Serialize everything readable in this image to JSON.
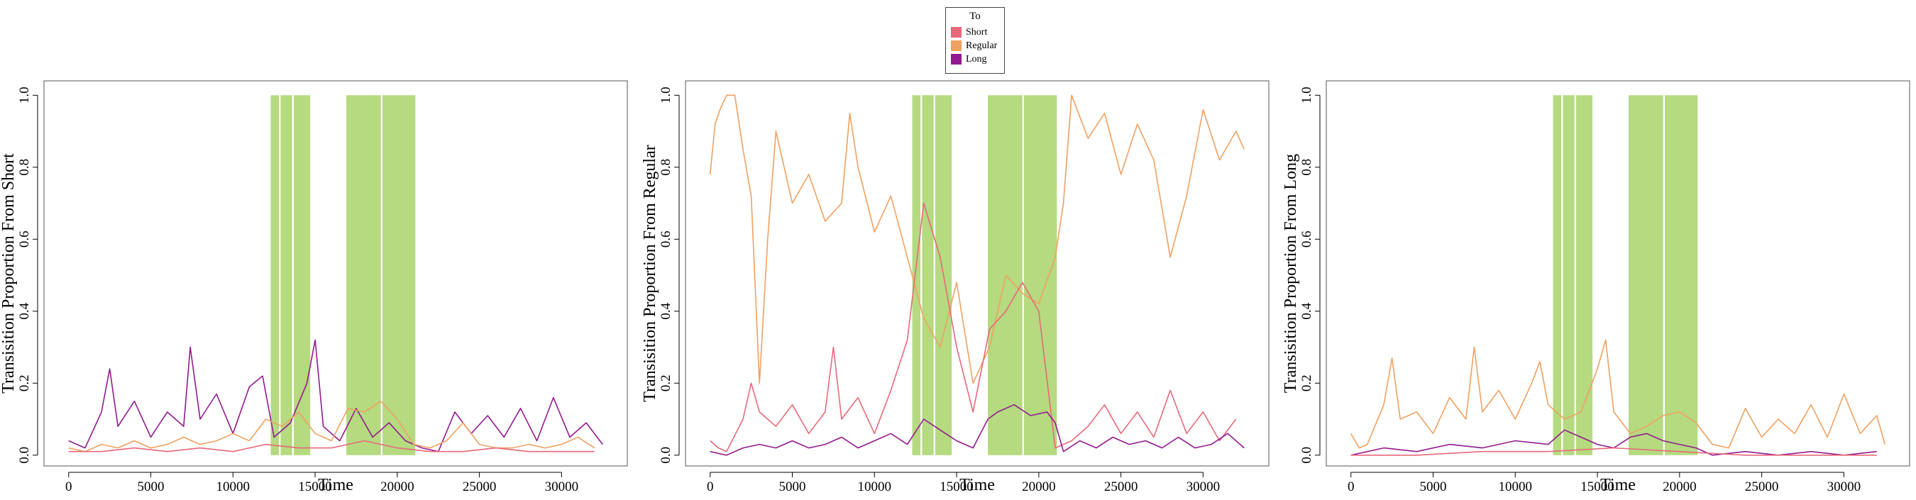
{
  "colors": {
    "Short": "#e8687a",
    "Regular": "#f0a060",
    "Long": "#93198f",
    "shade": "#a8d46a"
  },
  "legend": {
    "title": "To",
    "items": [
      {
        "label": "Short",
        "color": "#e8687a"
      },
      {
        "label": "Regular",
        "color": "#f0a060"
      },
      {
        "label": "Long",
        "color": "#93198f"
      }
    ]
  },
  "chart_data": [
    {
      "type": "line",
      "xlabel": "Time",
      "ylabel": "Transisition Proportion From Short",
      "xlim": [
        -1500,
        34000
      ],
      "ylim": [
        -0.03,
        1.04
      ],
      "xticks": [
        0,
        5000,
        10000,
        15000,
        20000,
        25000,
        30000
      ],
      "yticks": [
        0.0,
        0.2,
        0.4,
        0.6,
        0.8,
        1.0
      ],
      "ytick_labels": [
        "0.0",
        "0.2",
        "0.4",
        "0.6",
        "0.8",
        "1.0"
      ],
      "grid": false,
      "shaded_regions": [
        [
          12300,
          12800
        ],
        [
          12900,
          13600
        ],
        [
          13700,
          14700
        ],
        [
          16900,
          19000
        ],
        [
          19100,
          21100
        ]
      ],
      "series": [
        {
          "name": "Long",
          "x": [
            0,
            1000,
            2000,
            2500,
            3000,
            4000,
            5000,
            6000,
            7000,
            7400,
            8000,
            9000,
            10000,
            11000,
            11800,
            12500,
            13500,
            14500,
            15000,
            15500,
            16500,
            17500,
            18500,
            19500,
            20500,
            21500,
            22500,
            23500,
            24500,
            25500,
            26500,
            27500,
            28500,
            29500,
            30500,
            31500,
            32500
          ],
          "y": [
            0.04,
            0.02,
            0.12,
            0.24,
            0.08,
            0.15,
            0.05,
            0.12,
            0.08,
            0.3,
            0.1,
            0.17,
            0.06,
            0.19,
            0.22,
            0.05,
            0.09,
            0.2,
            0.32,
            0.08,
            0.04,
            0.13,
            0.05,
            0.09,
            0.04,
            0.02,
            0.01,
            0.12,
            0.06,
            0.11,
            0.05,
            0.13,
            0.04,
            0.16,
            0.05,
            0.09,
            0.03
          ]
        },
        {
          "name": "Regular",
          "x": [
            0,
            1000,
            2000,
            3000,
            4000,
            5000,
            6000,
            7000,
            8000,
            9000,
            10000,
            11000,
            12000,
            13000,
            14000,
            15000,
            16000,
            17000,
            18000,
            19000,
            20000,
            21000,
            22000,
            23000,
            24000,
            25000,
            26000,
            27000,
            28000,
            29000,
            30000,
            31000,
            32000
          ],
          "y": [
            0.02,
            0.01,
            0.03,
            0.02,
            0.04,
            0.02,
            0.03,
            0.05,
            0.03,
            0.04,
            0.06,
            0.04,
            0.1,
            0.08,
            0.12,
            0.06,
            0.04,
            0.13,
            0.12,
            0.15,
            0.1,
            0.03,
            0.02,
            0.04,
            0.09,
            0.03,
            0.02,
            0.02,
            0.03,
            0.02,
            0.03,
            0.05,
            0.02
          ]
        },
        {
          "name": "Short",
          "x": [
            0,
            2000,
            4000,
            6000,
            8000,
            10000,
            12000,
            14000,
            16000,
            18000,
            20000,
            22000,
            24000,
            26000,
            28000,
            30000,
            32000
          ],
          "y": [
            0.01,
            0.01,
            0.02,
            0.01,
            0.02,
            0.01,
            0.03,
            0.02,
            0.02,
            0.04,
            0.02,
            0.01,
            0.01,
            0.02,
            0.01,
            0.01,
            0.01
          ]
        }
      ]
    },
    {
      "type": "line",
      "xlabel": "Time",
      "ylabel": "Transisition Proportion From Regular",
      "xlim": [
        -1500,
        34000
      ],
      "ylim": [
        -0.03,
        1.04
      ],
      "xticks": [
        0,
        5000,
        10000,
        15000,
        20000,
        25000,
        30000
      ],
      "yticks": [
        0.0,
        0.2,
        0.4,
        0.6,
        0.8,
        1.0
      ],
      "ytick_labels": [
        "0.0",
        "0.2",
        "0.4",
        "0.6",
        "0.8",
        "1.0"
      ],
      "grid": false,
      "shaded_regions": [
        [
          12300,
          12800
        ],
        [
          12900,
          13600
        ],
        [
          13700,
          14700
        ],
        [
          16900,
          19000
        ],
        [
          19100,
          21100
        ]
      ],
      "series": [
        {
          "name": "Regular",
          "x": [
            0,
            300,
            600,
            1000,
            1500,
            2000,
            2500,
            3000,
            3500,
            4000,
            5000,
            6000,
            7000,
            8000,
            8500,
            9000,
            10000,
            11000,
            12000,
            13000,
            14000,
            15000,
            16000,
            17000,
            18000,
            19000,
            20000,
            21000,
            21500,
            22000,
            23000,
            24000,
            25000,
            26000,
            27000,
            28000,
            29000,
            30000,
            31000,
            32000,
            32500
          ],
          "y": [
            0.78,
            0.92,
            0.96,
            1.0,
            1.0,
            0.85,
            0.72,
            0.2,
            0.6,
            0.9,
            0.7,
            0.78,
            0.65,
            0.7,
            0.95,
            0.8,
            0.62,
            0.72,
            0.55,
            0.38,
            0.3,
            0.48,
            0.2,
            0.3,
            0.5,
            0.45,
            0.42,
            0.55,
            0.7,
            1.0,
            0.88,
            0.95,
            0.78,
            0.92,
            0.82,
            0.55,
            0.72,
            0.96,
            0.82,
            0.9,
            0.85
          ]
        },
        {
          "name": "Short",
          "x": [
            0,
            500,
            1000,
            2000,
            2500,
            3000,
            4000,
            5000,
            6000,
            7000,
            7500,
            8000,
            9000,
            10000,
            11000,
            12000,
            13000,
            14000,
            15000,
            16000,
            17000,
            18000,
            19000,
            20000,
            21000,
            22000,
            23000,
            24000,
            25000,
            26000,
            27000,
            28000,
            29000,
            30000,
            31000,
            32000
          ],
          "y": [
            0.04,
            0.02,
            0.01,
            0.1,
            0.2,
            0.12,
            0.08,
            0.14,
            0.06,
            0.12,
            0.3,
            0.1,
            0.16,
            0.06,
            0.18,
            0.32,
            0.7,
            0.55,
            0.3,
            0.12,
            0.35,
            0.4,
            0.48,
            0.4,
            0.02,
            0.04,
            0.08,
            0.14,
            0.06,
            0.12,
            0.05,
            0.18,
            0.06,
            0.12,
            0.04,
            0.1
          ]
        },
        {
          "name": "Long",
          "x": [
            0,
            1000,
            2000,
            3000,
            4000,
            5000,
            6000,
            7000,
            8000,
            9000,
            10000,
            11000,
            12000,
            13000,
            14000,
            15000,
            16000,
            16900,
            17500,
            18500,
            19500,
            20500,
            21000,
            21500,
            22500,
            23500,
            24500,
            25500,
            26500,
            27500,
            28500,
            29500,
            30500,
            31500,
            32500
          ],
          "y": [
            0.01,
            0.0,
            0.02,
            0.03,
            0.02,
            0.04,
            0.02,
            0.03,
            0.05,
            0.02,
            0.04,
            0.06,
            0.03,
            0.1,
            0.07,
            0.04,
            0.02,
            0.1,
            0.12,
            0.14,
            0.11,
            0.12,
            0.09,
            0.01,
            0.04,
            0.02,
            0.05,
            0.03,
            0.04,
            0.02,
            0.05,
            0.02,
            0.03,
            0.06,
            0.02
          ]
        }
      ]
    },
    {
      "type": "line",
      "xlabel": "Time",
      "ylabel": "Transisition Proportion From Long",
      "xlim": [
        -1500,
        34000
      ],
      "ylim": [
        -0.03,
        1.04
      ],
      "xticks": [
        0,
        5000,
        10000,
        15000,
        20000,
        25000,
        30000
      ],
      "yticks": [
        0.0,
        0.2,
        0.4,
        0.6,
        0.8,
        1.0
      ],
      "ytick_labels": [
        "0.0",
        "0.2",
        "0.4",
        "0.6",
        "0.8",
        "1.0"
      ],
      "grid": false,
      "shaded_regions": [
        [
          12300,
          12800
        ],
        [
          12900,
          13600
        ],
        [
          13700,
          14700
        ],
        [
          16900,
          19000
        ],
        [
          19100,
          21100
        ]
      ],
      "series": [
        {
          "name": "Regular",
          "x": [
            0,
            500,
            1000,
            2000,
            2500,
            3000,
            4000,
            5000,
            6000,
            7000,
            7500,
            8000,
            9000,
            10000,
            11000,
            11500,
            12000,
            13000,
            14000,
            15000,
            15500,
            16000,
            17000,
            18000,
            19000,
            20000,
            21000,
            22000,
            23000,
            24000,
            25000,
            26000,
            27000,
            28000,
            29000,
            30000,
            31000,
            32000,
            32500
          ],
          "y": [
            0.06,
            0.02,
            0.03,
            0.14,
            0.27,
            0.1,
            0.12,
            0.06,
            0.16,
            0.1,
            0.3,
            0.12,
            0.18,
            0.1,
            0.2,
            0.26,
            0.14,
            0.1,
            0.12,
            0.24,
            0.32,
            0.12,
            0.06,
            0.08,
            0.11,
            0.12,
            0.09,
            0.03,
            0.02,
            0.13,
            0.05,
            0.1,
            0.06,
            0.14,
            0.05,
            0.17,
            0.06,
            0.11,
            0.03
          ]
        },
        {
          "name": "Long",
          "x": [
            0,
            2000,
            4000,
            6000,
            8000,
            10000,
            12000,
            13000,
            14000,
            15000,
            16000,
            17000,
            18000,
            19000,
            20000,
            21000,
            22000,
            24000,
            26000,
            28000,
            30000,
            32000
          ],
          "y": [
            0.0,
            0.02,
            0.01,
            0.03,
            0.02,
            0.04,
            0.03,
            0.07,
            0.05,
            0.03,
            0.02,
            0.05,
            0.06,
            0.04,
            0.03,
            0.02,
            0.0,
            0.01,
            0.0,
            0.01,
            0.0,
            0.01
          ]
        },
        {
          "name": "Short",
          "x": [
            0,
            4000,
            8000,
            12000,
            16000,
            20000,
            24000,
            28000,
            32000
          ],
          "y": [
            0.0,
            0.0,
            0.01,
            0.01,
            0.02,
            0.01,
            0.0,
            0.0,
            0.0
          ]
        }
      ]
    }
  ]
}
